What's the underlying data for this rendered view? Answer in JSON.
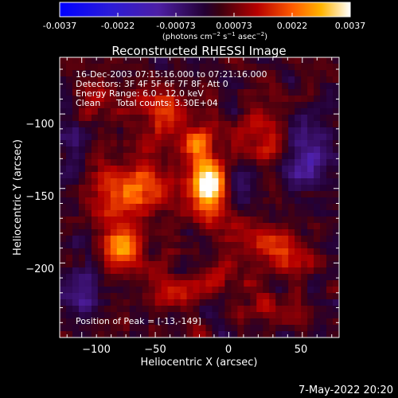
{
  "colorbar": {
    "ticks": [
      "-0.0037",
      "-0.0022",
      "-0.00073",
      "0.00073",
      "0.0022",
      "0.0037"
    ],
    "units": {
      "base": "(photons cm",
      "exp1": "−2",
      "mid1": " s",
      "exp2": "−1",
      "mid2": " asec",
      "exp3": "−2",
      "end": ")"
    }
  },
  "chart_data": {
    "type": "heatmap",
    "title": "Reconstructed RHESSI Image",
    "xlabel": "Heliocentric X (arcsec)",
    "ylabel": "Heliocentric Y (arcsec)",
    "xlim": [
      -115,
      75
    ],
    "ylim": [
      -250,
      -62
    ],
    "xticks": [
      "−100",
      "−50",
      "0",
      "50"
    ],
    "yticks": [
      "−100",
      "−150",
      "−200"
    ],
    "xtick_values": [
      -100,
      -50,
      0,
      50
    ],
    "ytick_values": [
      -100,
      -150,
      -200
    ],
    "colormap": "rhessi-purple-red-yellow-white",
    "value_range": [
      -0.0037,
      0.0037
    ],
    "peak": [
      -13,
      -149
    ],
    "sources": [
      {
        "x": -13,
        "y": -148,
        "amp": 0.0037,
        "sx": 8,
        "sy": 13
      },
      {
        "x": -22,
        "y": -120,
        "amp": 0.0018,
        "sx": 7,
        "sy": 10
      },
      {
        "x": -73,
        "y": -189,
        "amp": 0.0026,
        "sx": 9,
        "sy": 10
      },
      {
        "x": -58,
        "y": -148,
        "amp": 0.0017,
        "sx": 14,
        "sy": 14
      },
      {
        "x": -82,
        "y": -155,
        "amp": 0.0014,
        "sx": 10,
        "sy": 16
      },
      {
        "x": -45,
        "y": -100,
        "amp": 0.0016,
        "sx": 12,
        "sy": 12
      },
      {
        "x": -88,
        "y": -95,
        "amp": 0.001,
        "sx": 10,
        "sy": 10
      },
      {
        "x": 22,
        "y": -112,
        "amp": 0.0012,
        "sx": 10,
        "sy": 12
      },
      {
        "x": 38,
        "y": -192,
        "amp": 0.0013,
        "sx": 11,
        "sy": 12
      },
      {
        "x": 10,
        "y": -180,
        "amp": 0.0011,
        "sx": 10,
        "sy": 9
      },
      {
        "x": -35,
        "y": -215,
        "amp": 0.0012,
        "sx": 13,
        "sy": 9
      },
      {
        "x": 28,
        "y": -230,
        "amp": 0.001,
        "sx": 10,
        "sy": 8
      },
      {
        "x": -5,
        "y": -210,
        "amp": 0.001,
        "sx": 9,
        "sy": 8
      },
      {
        "x": 55,
        "y": -125,
        "amp": -0.0012,
        "sx": 10,
        "sy": 20
      },
      {
        "x": -100,
        "y": -218,
        "amp": -0.001,
        "sx": 10,
        "sy": 12
      },
      {
        "x": -105,
        "y": -120,
        "amp": -0.0009,
        "sx": 8,
        "sy": 12
      },
      {
        "x": 8,
        "y": -150,
        "amp": -0.0006,
        "sx": 7,
        "sy": 12
      }
    ]
  },
  "annotations": {
    "line1": "16-Dec-2003 07:15:16.000 to 07:21:16.000",
    "line2": "Detectors: 3F 4F 5F 6F 7F 8F, Att 0",
    "line3": "Energy Range: 6.0 - 12.0 keV",
    "line4a": "Clean",
    "line4b": "Total counts: 3.30E+04",
    "peak_label": "Position of Peak = [-13,-149]"
  },
  "timestamp": "7-May-2022 20:20"
}
